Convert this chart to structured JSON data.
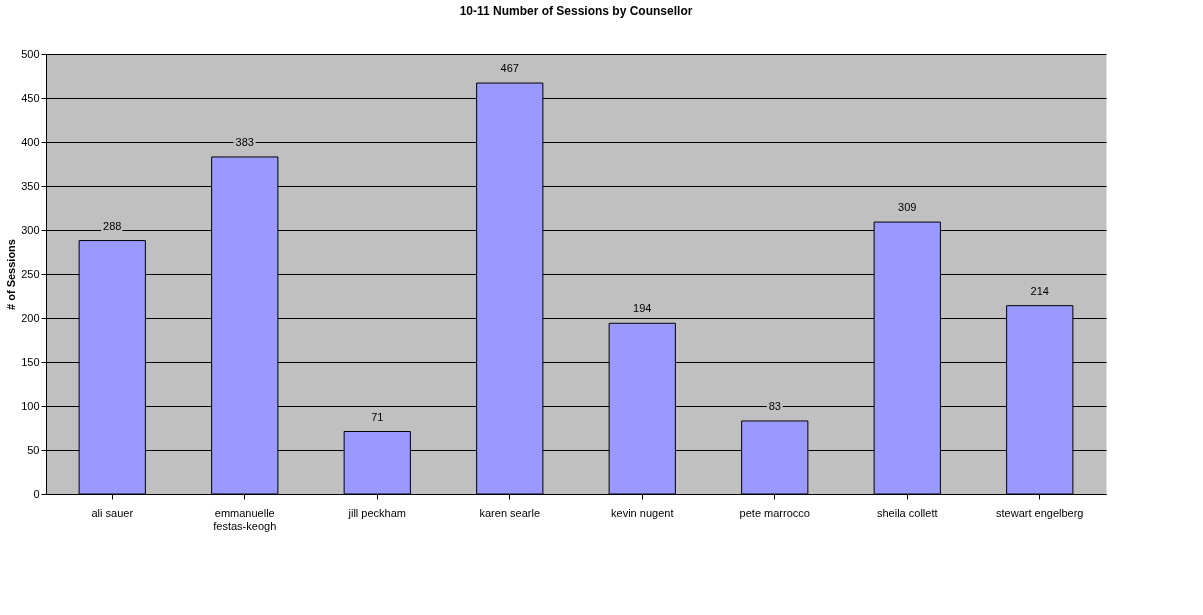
{
  "chart_data": {
    "type": "bar",
    "title": "10-11 Number of Sessions by Counsellor",
    "ylabel": "# of Sessions",
    "categories": [
      "ali sauer",
      "emmanuelle festas-keogh",
      "jill peckham",
      "karen searle",
      "kevin nugent",
      "pete marrocco",
      "sheila collett",
      "stewart engelberg"
    ],
    "values": [
      288,
      383,
      71,
      467,
      194,
      83,
      309,
      214
    ],
    "color": "#9999ff",
    "ylim": [
      0,
      500
    ],
    "yticks": [
      0,
      50,
      100,
      150,
      200,
      250,
      300,
      350,
      400,
      450,
      500
    ],
    "grid": "y",
    "data_labels": true
  }
}
